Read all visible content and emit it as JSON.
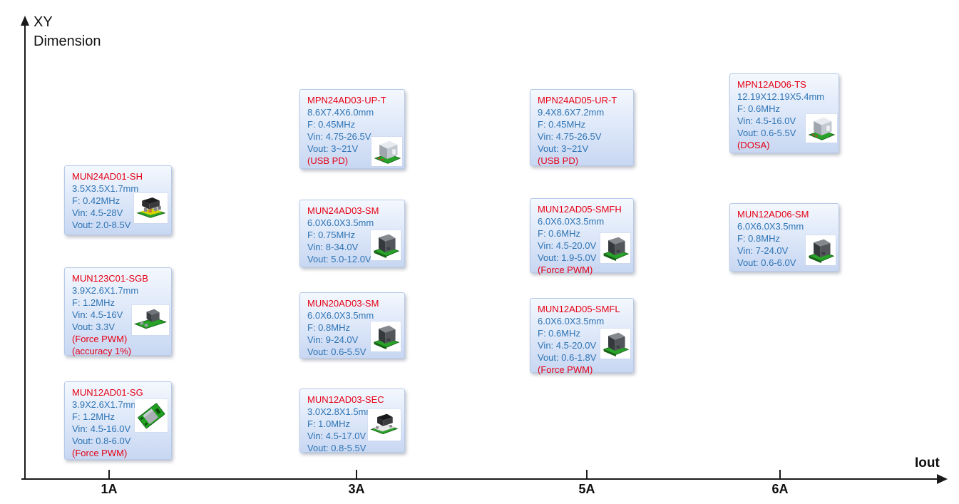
{
  "colors": {
    "product_name_red": "#e60014",
    "spec_text_blue": "#2e74b5",
    "axis_black": "#1a1a1a",
    "card_gradient_top": "#f4f8fe",
    "card_gradient_bottom": "#c8d7f2",
    "pcb_green": "#28a228"
  },
  "axes": {
    "y_label_line1": "XY",
    "y_label_line2": "Dimension",
    "x_label": "Iout",
    "x_ticks": [
      {
        "label": "1A"
      },
      {
        "label": "3A"
      },
      {
        "label": "5A"
      },
      {
        "label": "6A"
      }
    ]
  },
  "cards": [
    {
      "name": "MUN24AD01-SH",
      "size": "3.5X3.5X1.7mm",
      "freq": "F: 0.42MHz",
      "vin": "Vin: 4.5-28V",
      "vout": "Vout: 2.0-8.5V",
      "notes": [],
      "icon": "chip-flat",
      "icon_alt": "black chip on green pcb"
    },
    {
      "name": "MUN123C01-SGB",
      "size": "3.9X2.6X1.7mm",
      "freq": "F: 1.2MHz",
      "vin": "Vin: 4.5-16V",
      "vout": "Vout: 3.3V",
      "notes": [
        "(Force PWM)",
        "(accuracy 1%)"
      ],
      "icon": "board-long",
      "icon_alt": "dark module on long green pcb"
    },
    {
      "name": "MUN12AD01-SG",
      "size": "3.9X2.6X1.7mm",
      "freq": "F: 1.2MHz",
      "vin": "Vin: 4.5-16.0V",
      "vout": "Vout: 0.8-6.0V",
      "notes": [
        "(Force PWM)"
      ],
      "icon": "pcb-angled",
      "icon_alt": "tilted green pcb module"
    },
    {
      "name": "MPN24AD03-UP-T",
      "size": "8.6X7.4X6.0mm",
      "freq": "F: 0.45MHz",
      "vin": "Vin: 4.75-26.5V",
      "vout": "Vout: 3~21V",
      "notes": [
        "(USB PD)"
      ],
      "icon": "module-silver",
      "icon_alt": "silver power module on green pcb"
    },
    {
      "name": "MUN24AD03-SM",
      "size": "6.0X6.0X3.5mm",
      "freq": "F: 0.75MHz",
      "vin": "Vin: 8-34.0V",
      "vout": "Vout: 5.0-12.0V",
      "notes": [],
      "icon": "module-dark",
      "icon_alt": "dark power module on green pcb"
    },
    {
      "name": "MUN20AD03-SM",
      "size": "6.0X6.0X3.5mm",
      "freq": "F: 0.8MHz",
      "vin": "Vin: 9-24.0V",
      "vout": "Vout: 0.6-5.5V",
      "notes": [],
      "icon": "module-dark",
      "icon_alt": "dark power module on green pcb"
    },
    {
      "name": "MUN12AD03-SEC",
      "size": "3.0X2.8X1.5mm",
      "freq": "F: 1.0MHz",
      "vin": "Vin: 4.5-17.0V",
      "vout": "Vout: 0.8-5.5V",
      "notes": [],
      "icon": "chip-small",
      "icon_alt": "small black chip module"
    },
    {
      "name": "MPN24AD05-UR-T",
      "size": "9.4X8.6X7.2mm",
      "freq": "F: 0.45MHz",
      "vin": "Vin: 4.75-26.5V",
      "vout": "Vout: 3~21V",
      "notes": [
        "(USB PD)"
      ],
      "icon": "none",
      "icon_alt": ""
    },
    {
      "name": "MUN12AD05-SMFH",
      "size": "6.0X6.0X3.5mm",
      "freq": "F: 0.6MHz",
      "vin": "Vin: 4.5-20.0V",
      "vout": "Vout: 1.9-5.0V",
      "notes": [
        "(Force PWM)"
      ],
      "icon": "module-dark",
      "icon_alt": "dark power module on green pcb"
    },
    {
      "name": "MUN12AD05-SMFL",
      "size": "6.0X6.0X3.5mm",
      "freq": "F: 0.6MHz",
      "vin": "Vin: 4.5-20.0V",
      "vout": "Vout: 0.6-1.8V",
      "notes": [
        "(Force PWM)"
      ],
      "icon": "module-dark",
      "icon_alt": "dark power module on green pcb"
    },
    {
      "name": "MPN12AD06-TS",
      "size": "12.19X12.19X5.4mm",
      "freq": "F: 0.6MHz",
      "vin": "Vin: 4.5-16.0V",
      "vout": "Vout: 0.6-5.5V",
      "notes": [
        "(DOSA)"
      ],
      "icon": "module-silver",
      "icon_alt": "silver power module on green pcb"
    },
    {
      "name": "MUN12AD06-SM",
      "size": "6.0X6.0X3.5mm",
      "freq": "F: 0.8MHz",
      "vin": "Vin: 7-24.0V",
      "vout": "Vout: 0.6-6.0V",
      "notes": [],
      "icon": "module-dark",
      "icon_alt": "dark power module on green pcb"
    }
  ]
}
